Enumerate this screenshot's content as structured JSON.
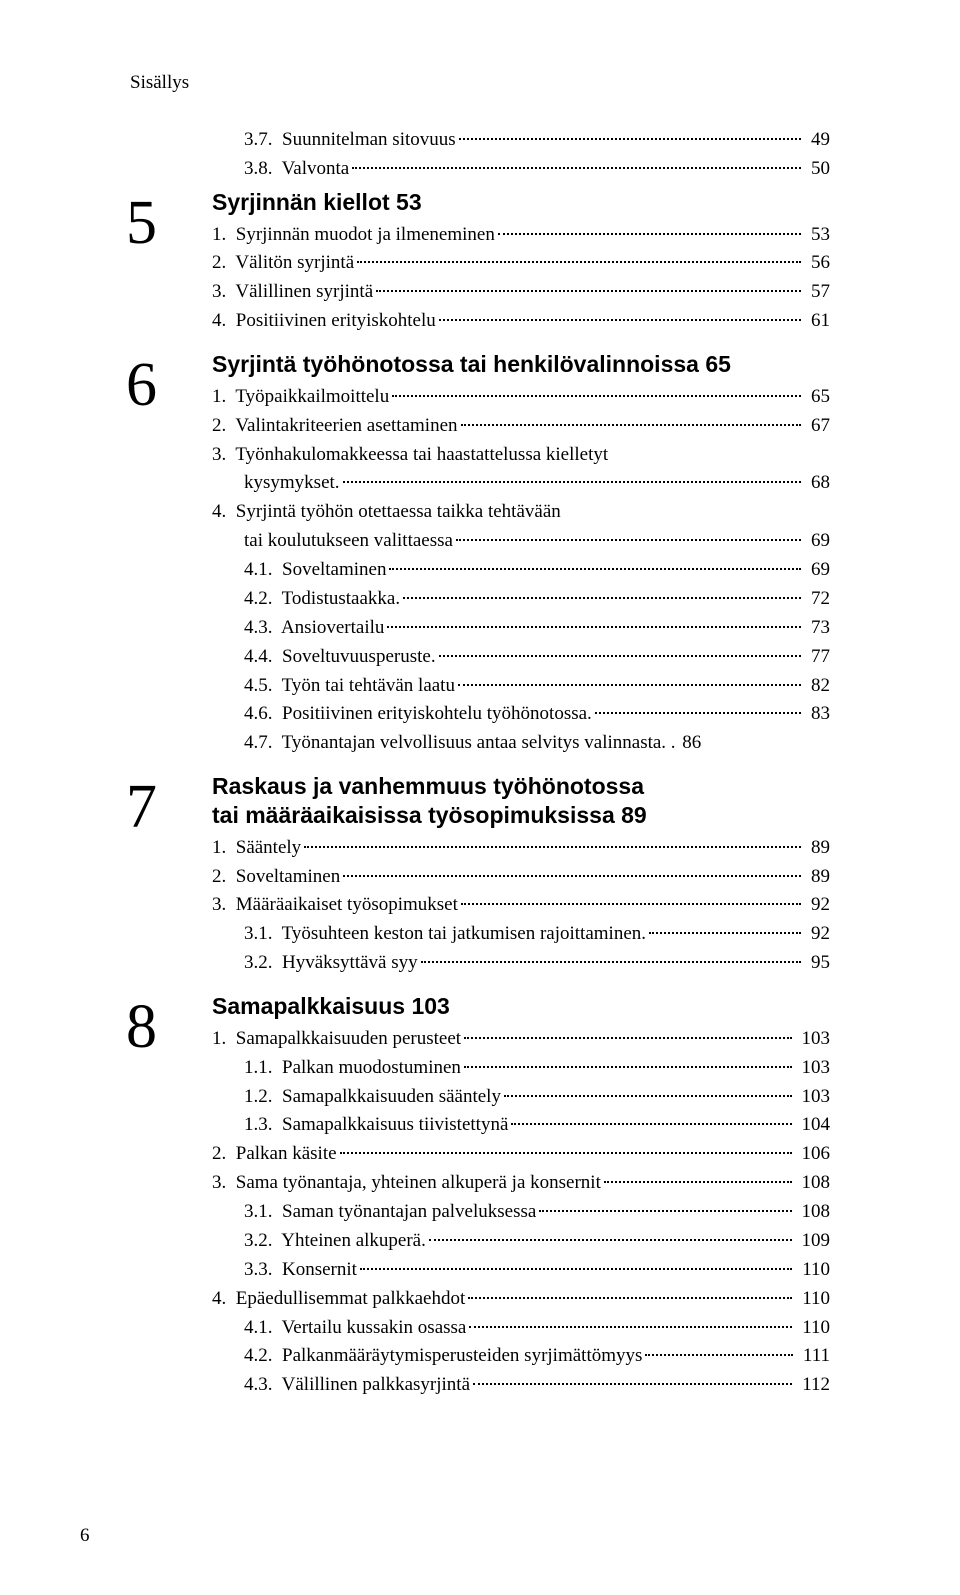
{
  "header": "Sisällys",
  "page_number": "6",
  "pre_lines": [
    {
      "label": "3.7.  Suunnitelman sitovuus",
      "page": "49",
      "indent": 2
    },
    {
      "label": "3.8.  Valvonta",
      "page": "50",
      "indent": 2
    }
  ],
  "sections": [
    {
      "num": "5",
      "title": "Syrjinnän kiellot 53",
      "lines": [
        {
          "label": "1.  Syrjinnän muodot ja ilmeneminen",
          "page": "53",
          "indent": 1
        },
        {
          "label": "2.  Välitön syrjintä",
          "page": "56",
          "indent": 1
        },
        {
          "label": "3.  Välillinen syrjintä",
          "page": "57",
          "indent": 1
        },
        {
          "label": "4.  Positiivinen erityiskohtelu",
          "page": "61",
          "indent": 1
        }
      ]
    },
    {
      "num": "6",
      "title": "Syrjintä työhönotossa tai henkilövalinnoissa 65",
      "lines": [
        {
          "label": "1.  Työpaikkailmoittelu",
          "page": "65",
          "indent": 1
        },
        {
          "label": "2.  Valintakriteerien asettaminen",
          "page": "67",
          "indent": 1
        },
        {
          "label_multi": "3.  Työnhakulomakkeessa tai haastattelussa kielletyt",
          "label2": "kysymykset.",
          "page": "68",
          "indent": 1
        },
        {
          "label_multi": "4.  Syrjintä työhön otettaessa taikka tehtävään",
          "label2": "tai koulutukseen valittaessa",
          "page": "69",
          "indent": 1
        },
        {
          "label": "4.1.  Soveltaminen",
          "page": "69",
          "indent": 2
        },
        {
          "label": "4.2.  Todistustaakka.",
          "page": "72",
          "indent": 2
        },
        {
          "label": "4.3.  Ansiovertailu",
          "page": "73",
          "indent": 2
        },
        {
          "label": "4.4.  Soveltuvuusperuste.",
          "page": "77",
          "indent": 2
        },
        {
          "label": "4.5.  Työn tai tehtävän laatu",
          "page": "82",
          "indent": 2
        },
        {
          "label": "4.6.  Positiivinen erityiskohtelu työhönotossa.",
          "page": "83",
          "indent": 2
        },
        {
          "label": "4.7.  Työnantajan velvollisuus antaa selvitys valinnasta",
          "page": "86",
          "indent": 2,
          "tight": true
        }
      ]
    },
    {
      "num": "7",
      "title_multi": [
        "Raskaus ja vanhemmuus työhönotossa",
        "tai määräaikaisissa työsopimuksissa 89"
      ],
      "lines": [
        {
          "label": "1.  Sääntely",
          "page": "89",
          "indent": 1
        },
        {
          "label": "2.  Soveltaminen",
          "page": "89",
          "indent": 1
        },
        {
          "label": "3.  Määräaikaiset työsopimukset",
          "page": "92",
          "indent": 1
        },
        {
          "label": "3.1.  Työsuhteen keston tai jatkumisen rajoittaminen.",
          "page": "92",
          "indent": 2
        },
        {
          "label": "3.2.  Hyväksyttävä syy",
          "page": "95",
          "indent": 2
        }
      ]
    },
    {
      "num": "8",
      "title": "Samapalkkaisuus 103",
      "lines": [
        {
          "label": "1.  Samapalkkaisuuden perusteet",
          "page": "103",
          "indent": 1
        },
        {
          "label": "1.1.  Palkan muodostuminen",
          "page": "103",
          "indent": 2
        },
        {
          "label": "1.2.  Samapalkkaisuuden sääntely",
          "page": "103",
          "indent": 2
        },
        {
          "label": "1.3.  Samapalkkaisuus tiivistettynä",
          "page": "104",
          "indent": 2
        },
        {
          "label": "2.  Palkan käsite",
          "page": "106",
          "indent": 1
        },
        {
          "label": "3.  Sama työnantaja, yhteinen alkuperä ja konsernit",
          "page": "108",
          "indent": 1
        },
        {
          "label": "3.1.  Saman työnantajan palveluksessa",
          "page": "108",
          "indent": 2
        },
        {
          "label": "3.2.  Yhteinen alkuperä.",
          "page": "109",
          "indent": 2
        },
        {
          "label": "3.3.  Konsernit",
          "page": "110",
          "indent": 2
        },
        {
          "label": "4.  Epäedullisemmat palkkaehdot",
          "page": "110",
          "indent": 1
        },
        {
          "label": "4.1.  Vertailu kussakin osassa",
          "page": "110",
          "indent": 2
        },
        {
          "label": "4.2.  Palkanmääräytymisperusteiden syrjimättömyys",
          "page": "111",
          "indent": 2
        },
        {
          "label": "4.3.  Välillinen palkkasyrjintä",
          "page": "112",
          "indent": 2
        }
      ]
    }
  ]
}
